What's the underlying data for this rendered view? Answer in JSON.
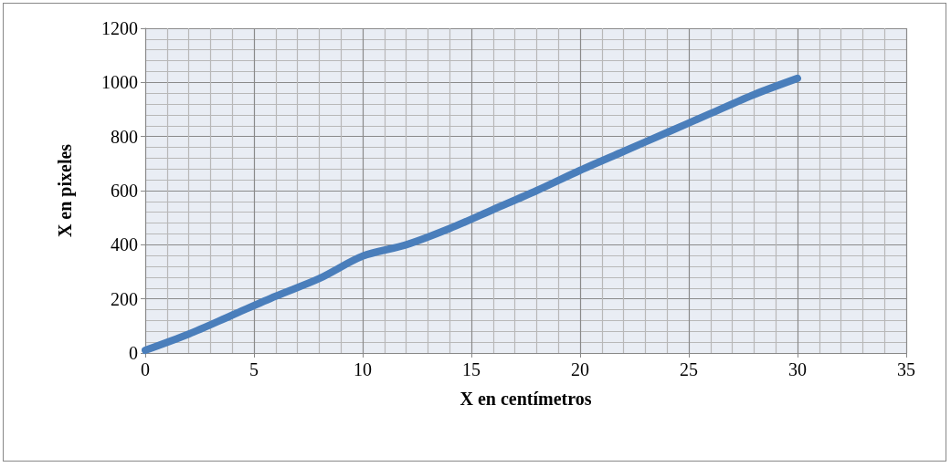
{
  "chart_data": {
    "type": "line",
    "xlabel": "X en centímetros",
    "ylabel": "X en pixeles",
    "x": [
      0,
      2,
      4,
      6,
      8,
      10,
      12,
      14,
      16,
      18,
      20,
      22,
      24,
      26,
      28,
      30
    ],
    "series": [
      {
        "color": "#4a7ebb",
        "values": [
          10,
          70,
          140,
          210,
          275,
          358,
          400,
          460,
          530,
          600,
          675,
          745,
          815,
          885,
          955,
          1015
        ]
      }
    ],
    "xlim": [
      0,
      35
    ],
    "xticks": [
      0,
      5,
      10,
      15,
      20,
      25,
      30,
      35
    ],
    "ylim": [
      0,
      1200
    ],
    "yticks": [
      0,
      200,
      400,
      600,
      800,
      1000,
      1200
    ],
    "grid": true,
    "marker": "none",
    "line_style": "solid"
  }
}
